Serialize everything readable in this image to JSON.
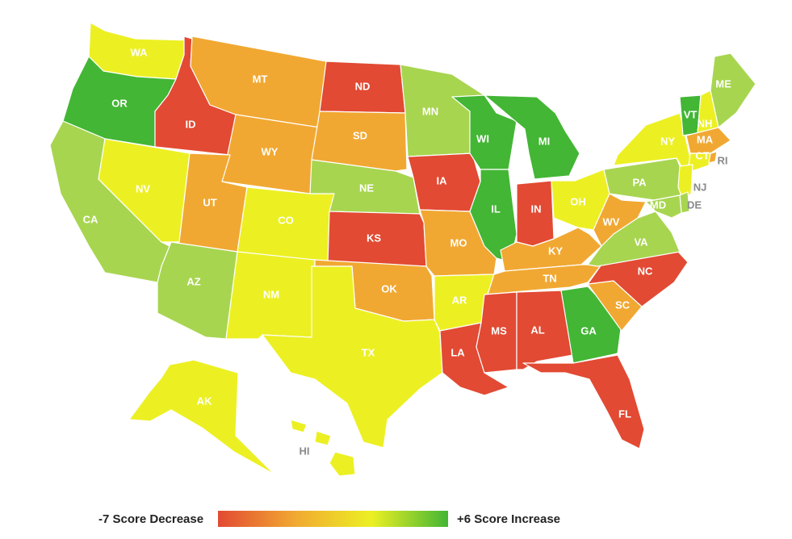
{
  "colors": {
    "dark_red": "#e24a33",
    "orange": "#f1a832",
    "yellow": "#ecf023",
    "light_green": "#a8d550",
    "green": "#43b635"
  },
  "legend": {
    "min_label": "-7 Score Decrease",
    "max_label": "+6 Score Increase",
    "gradient": [
      "#e24a33",
      "#f1a832",
      "#ecf023",
      "#43b635"
    ]
  },
  "states": [
    {
      "code": "WA",
      "label": "WA",
      "category": "yellow"
    },
    {
      "code": "OR",
      "label": "OR",
      "category": "green"
    },
    {
      "code": "CA",
      "label": "CA",
      "category": "light_green"
    },
    {
      "code": "ID",
      "label": "ID",
      "category": "dark_red"
    },
    {
      "code": "NV",
      "label": "NV",
      "category": "yellow"
    },
    {
      "code": "MT",
      "label": "MT",
      "category": "orange"
    },
    {
      "code": "WY",
      "label": "WY",
      "category": "orange"
    },
    {
      "code": "UT",
      "label": "UT",
      "category": "orange"
    },
    {
      "code": "AZ",
      "label": "AZ",
      "category": "light_green"
    },
    {
      "code": "CO",
      "label": "CO",
      "category": "yellow"
    },
    {
      "code": "NM",
      "label": "NM",
      "category": "yellow"
    },
    {
      "code": "ND",
      "label": "ND",
      "category": "dark_red"
    },
    {
      "code": "SD",
      "label": "SD",
      "category": "orange"
    },
    {
      "code": "NE",
      "label": "NE",
      "category": "light_green"
    },
    {
      "code": "KS",
      "label": "KS",
      "category": "dark_red"
    },
    {
      "code": "OK",
      "label": "OK",
      "category": "orange"
    },
    {
      "code": "TX",
      "label": "TX",
      "category": "yellow"
    },
    {
      "code": "MN",
      "label": "MN",
      "category": "light_green"
    },
    {
      "code": "IA",
      "label": "IA",
      "category": "dark_red"
    },
    {
      "code": "MO",
      "label": "MO",
      "category": "orange"
    },
    {
      "code": "AR",
      "label": "AR",
      "category": "yellow"
    },
    {
      "code": "LA",
      "label": "LA",
      "category": "dark_red"
    },
    {
      "code": "WI",
      "label": "WI",
      "category": "green"
    },
    {
      "code": "IL",
      "label": "IL",
      "category": "green"
    },
    {
      "code": "MI",
      "label": "MI",
      "category": "green"
    },
    {
      "code": "IN",
      "label": "IN",
      "category": "dark_red"
    },
    {
      "code": "OH",
      "label": "OH",
      "category": "yellow"
    },
    {
      "code": "KY",
      "label": "KY",
      "category": "orange"
    },
    {
      "code": "TN",
      "label": "TN",
      "category": "orange"
    },
    {
      "code": "MS",
      "label": "MS",
      "category": "dark_red"
    },
    {
      "code": "AL",
      "label": "AL",
      "category": "dark_red"
    },
    {
      "code": "GA",
      "label": "GA",
      "category": "green"
    },
    {
      "code": "FL",
      "label": "FL",
      "category": "dark_red"
    },
    {
      "code": "SC",
      "label": "SC",
      "category": "orange"
    },
    {
      "code": "NC",
      "label": "NC",
      "category": "dark_red"
    },
    {
      "code": "VA",
      "label": "VA",
      "category": "light_green"
    },
    {
      "code": "WV",
      "label": "WV",
      "category": "orange"
    },
    {
      "code": "PA",
      "label": "PA",
      "category": "light_green"
    },
    {
      "code": "NY",
      "label": "NY",
      "category": "yellow"
    },
    {
      "code": "VT",
      "label": "VT",
      "category": "green"
    },
    {
      "code": "NH",
      "label": "NH",
      "category": "yellow"
    },
    {
      "code": "ME",
      "label": "ME",
      "category": "light_green"
    },
    {
      "code": "MA",
      "label": "MA",
      "category": "orange"
    },
    {
      "code": "CT",
      "label": "CT",
      "category": "yellow"
    },
    {
      "code": "RI",
      "label": "RI",
      "category": "orange"
    },
    {
      "code": "NJ",
      "label": "NJ",
      "category": "yellow"
    },
    {
      "code": "DE",
      "label": "DE",
      "category": "light_green"
    },
    {
      "code": "MD",
      "label": "MD",
      "category": "light_green"
    },
    {
      "code": "AK",
      "label": "AK",
      "category": "yellow"
    },
    {
      "code": "HI",
      "label": "HI",
      "category": "yellow"
    }
  ]
}
